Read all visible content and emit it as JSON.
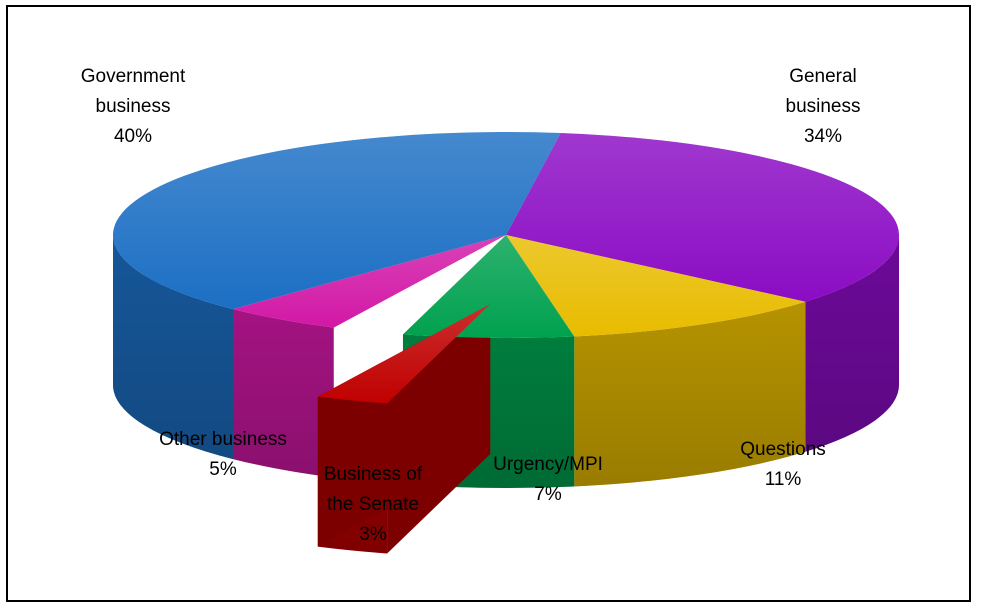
{
  "chart_data": {
    "type": "pie",
    "title": "",
    "style": "3d-exploded",
    "slices": [
      {
        "name_lines": [
          "General",
          "business"
        ],
        "value": 34,
        "value_label": "34%",
        "color": "#8B0CC4"
      },
      {
        "name_lines": [
          "Questions"
        ],
        "value": 11,
        "value_label": "11%",
        "color": "#E8BC00"
      },
      {
        "name_lines": [
          "Urgency/MPI"
        ],
        "value": 7,
        "value_label": "7%",
        "color": "#00A14F"
      },
      {
        "name_lines": [
          "Business of",
          "the Senate"
        ],
        "value": 3,
        "value_label": "3%",
        "color": "#C00000"
      },
      {
        "name_lines": [
          "Other business"
        ],
        "value": 5,
        "value_label": "5%",
        "color": "#D218A6"
      },
      {
        "name_lines": [
          "Government",
          "business"
        ],
        "value": 40,
        "value_label": "40%",
        "color": "#1C6FC4"
      }
    ],
    "exploded_slice": "Business of the Senate"
  }
}
